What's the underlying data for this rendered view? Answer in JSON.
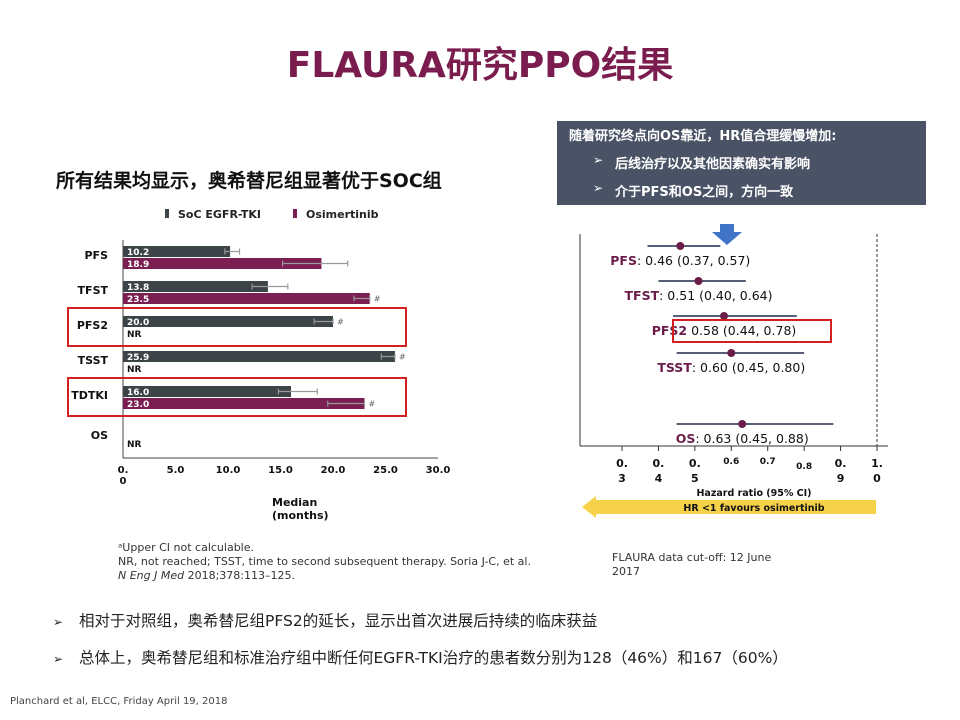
{
  "title": "FLAURA研究PPO结果",
  "subtitle": "所有结果均显示，奥希替尼组显著优于SOC组",
  "infobox": {
    "head": "随着研究终点向OS靠近，HR值合理缓慢增加:",
    "bullets": [
      "后线治疗以及其他因素确实有影响",
      "介于PFS和OS之间，方向一致"
    ],
    "bullet_marker": "➢"
  },
  "chart_data": [
    {
      "type": "bar",
      "orientation": "horizontal",
      "legend": [
        "SoC EGFR-TKI",
        "Osimertinib"
      ],
      "legend_position": "top",
      "categories": [
        "PFS",
        "TFST",
        "PFS2",
        "TSST",
        "TDTKI",
        "OS"
      ],
      "series": [
        {
          "name": "SoC EGFR-TKI",
          "color": "#3d4447",
          "values": [
            10.2,
            13.8,
            20.0,
            25.9,
            16.0,
            null
          ],
          "labels": [
            "10.2",
            "13.8",
            "20.0",
            "25.9",
            "16.0",
            ""
          ],
          "ci": [
            [
              9.7,
              11.1
            ],
            [
              12.3,
              15.7
            ],
            [
              18.2,
              20.0
            ],
            [
              24.6,
              25.9
            ],
            [
              14.8,
              18.5
            ],
            null
          ],
          "ci_marker": [
            "",
            "",
            "#",
            "#",
            "",
            ""
          ]
        },
        {
          "name": "Osimertinib",
          "color": "#7b1f52",
          "values": [
            18.9,
            23.5,
            null,
            null,
            23.0,
            null
          ],
          "labels": [
            "18.9",
            "23.5",
            "NR",
            "NR",
            "23.0",
            "NR"
          ],
          "ci": [
            [
              15.2,
              21.4
            ],
            [
              22.0,
              23.5
            ],
            null,
            null,
            [
              19.5,
              23.0
            ],
            null
          ],
          "ci_marker": [
            "",
            "#",
            "",
            "",
            "#",
            ""
          ]
        }
      ],
      "xlim": [
        0,
        30
      ],
      "xticks": [
        "0.\n0",
        "5.0",
        "10.0",
        "15.0",
        "20.0",
        "25.0",
        "30.0"
      ],
      "xlabel": "Median\n(months)",
      "highlight": [
        "PFS2",
        "TDTKI"
      ]
    },
    {
      "type": "scatter",
      "subtype": "forest",
      "rows": [
        {
          "name": "PFS",
          "hr": 0.46,
          "ci": [
            0.37,
            0.57
          ],
          "text": ": 0.46 (0.37, 0.57)"
        },
        {
          "name": "TFST",
          "hr": 0.51,
          "ci": [
            0.4,
            0.64
          ],
          "text": ": 0.51 (0.40, 0.64)"
        },
        {
          "name": "PFS2",
          "hr": 0.58,
          "ci": [
            0.44,
            0.78
          ],
          "text": " 0.58 (0.44, 0.78)"
        },
        {
          "name": "TSST",
          "hr": 0.6,
          "ci": [
            0.45,
            0.8
          ],
          "text": ": 0.60 (0.45, 0.80)"
        },
        {
          "name": "OS",
          "hr": 0.63,
          "ci": [
            0.45,
            0.88
          ],
          "text": ": 0.63 (0.45, 0.88)"
        }
      ],
      "highlight": "PFS2",
      "xticks": [
        {
          "v": 0.3,
          "label": "0.\n3"
        },
        {
          "v": 0.4,
          "label": "0.\n4"
        },
        {
          "v": 0.5,
          "label": "0.\n5"
        },
        {
          "v": 0.6,
          "label": "0.6"
        },
        {
          "v": 0.7,
          "label": "0.7"
        },
        {
          "v": 0.8,
          "label": "0.8"
        },
        {
          "v": 0.9,
          "label": "0.\n9"
        },
        {
          "v": 1.0,
          "label": "1.\n0"
        }
      ],
      "xlabel": "Hazard ratio (95% CI)",
      "favours_label": "HR <1 favours osimertinib",
      "point_color": "#6b1d4a"
    }
  ],
  "left_notes": {
    "l1": "ᵃUpper CI not calculable.",
    "l2": "NR, not reached; TSST, time to second subsequent therapy.  Soria J-C, et al.",
    "l3_italic": "N Eng J Med",
    "l3_rest": " 2018;378:113–125."
  },
  "right_note": "FLAURA data cut-off: 12 June 2017",
  "bottom_bullets": [
    "相对于对照组，奥希替尼组PFS2的延长，显示出首次进展后持续的临床获益",
    "总体上，奥希替尼组和标准治疗组中断任何EGFR-TKI治疗的患者数分别为128（46%）和167（60%）"
  ],
  "bottom_marker": "➢",
  "source": "Planchard et al, ELCC, Friday April 19, 2018"
}
